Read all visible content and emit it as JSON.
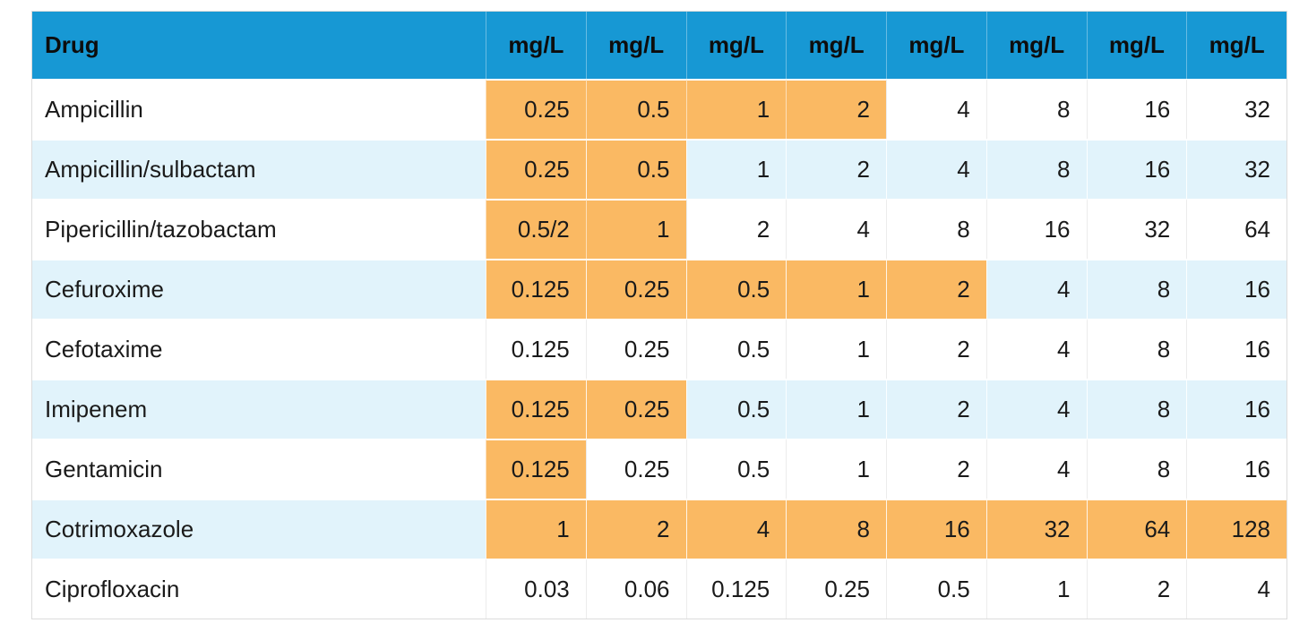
{
  "table": {
    "header": {
      "drug_label": "Drug",
      "unit_labels": [
        "mg/L",
        "mg/L",
        "mg/L",
        "mg/L",
        "mg/L",
        "mg/L",
        "mg/L",
        "mg/L"
      ]
    },
    "rows": [
      {
        "drug": "Ampicillin",
        "values": [
          "0.25",
          "0.5",
          "1",
          "2",
          "4",
          "8",
          "16",
          "32"
        ],
        "highlighted_count": 4
      },
      {
        "drug": "Ampicillin/sulbactam",
        "values": [
          "0.25",
          "0.5",
          "1",
          "2",
          "4",
          "8",
          "16",
          "32"
        ],
        "highlighted_count": 2
      },
      {
        "drug": "Pipericillin/tazobactam",
        "values": [
          "0.5/2",
          "1",
          "2",
          "4",
          "8",
          "16",
          "32",
          "64"
        ],
        "highlighted_count": 2
      },
      {
        "drug": "Cefuroxime",
        "values": [
          "0.125",
          "0.25",
          "0.5",
          "1",
          "2",
          "4",
          "8",
          "16"
        ],
        "highlighted_count": 5
      },
      {
        "drug": "Cefotaxime",
        "values": [
          "0.125",
          "0.25",
          "0.5",
          "1",
          "2",
          "4",
          "8",
          "16"
        ],
        "highlighted_count": 0
      },
      {
        "drug": "Imipenem",
        "values": [
          "0.125",
          "0.25",
          "0.5",
          "1",
          "2",
          "4",
          "8",
          "16"
        ],
        "highlighted_count": 2
      },
      {
        "drug": "Gentamicin",
        "values": [
          "0.125",
          "0.25",
          "0.5",
          "1",
          "2",
          "4",
          "8",
          "16"
        ],
        "highlighted_count": 1
      },
      {
        "drug": "Cotrimoxazole",
        "values": [
          "1",
          "2",
          "4",
          "8",
          "16",
          "32",
          "64",
          "128"
        ],
        "highlighted_count": 8
      },
      {
        "drug": "Ciprofloxacin",
        "values": [
          "0.03",
          "0.06",
          "0.125",
          "0.25",
          "0.5",
          "1",
          "2",
          "4"
        ],
        "highlighted_count": 0
      }
    ],
    "colors": {
      "header_bg": "#1798D4",
      "highlight_bg": "#FAB963",
      "row_alt_bg": "#E1F3FB",
      "row_bg": "#FFFFFF",
      "text": "#1A1A1A"
    }
  }
}
